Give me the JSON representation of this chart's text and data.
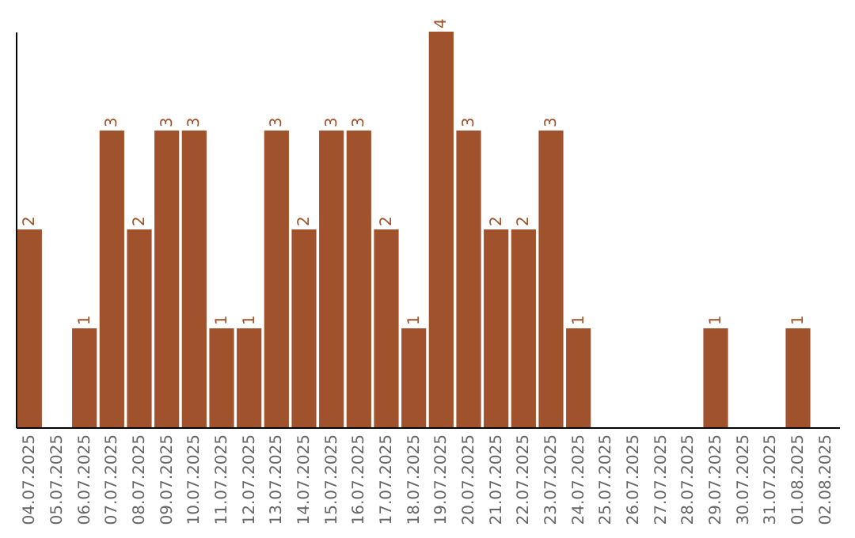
{
  "chart_data": {
    "type": "bar",
    "categories": [
      "04.07.2025",
      "05.07.2025",
      "06.07.2025",
      "07.07.2025",
      "08.07.2025",
      "09.07.2025",
      "10.07.2025",
      "11.07.2025",
      "12.07.2025",
      "13.07.2025",
      "14.07.2025",
      "15.07.2025",
      "16.07.2025",
      "17.07.2025",
      "18.07.2025",
      "19.07.2025",
      "20.07.2025",
      "21.07.2025",
      "22.07.2025",
      "23.07.2025",
      "24.07.2025",
      "25.07.2025",
      "26.07.2025",
      "27.07.2025",
      "28.07.2025",
      "29.07.2025",
      "30.07.2025",
      "31.07.2025",
      "01.08.2025",
      "02.08.2025"
    ],
    "values": [
      2,
      0,
      1,
      3,
      2,
      3,
      3,
      1,
      1,
      3,
      2,
      3,
      3,
      2,
      1,
      4,
      3,
      2,
      2,
      3,
      1,
      0,
      0,
      0,
      0,
      1,
      0,
      0,
      1,
      0
    ],
    "value_labels": [
      "2",
      null,
      "1",
      "3",
      "2",
      "3",
      "3",
      "1",
      "1",
      "3",
      "2",
      "3",
      "3",
      "2",
      "1",
      "4",
      "3",
      "2",
      "2",
      "3",
      "1",
      null,
      null,
      null,
      null,
      "1",
      null,
      null,
      "1",
      null
    ],
    "color": "#a0522d",
    "tick_labels": "x"
  }
}
